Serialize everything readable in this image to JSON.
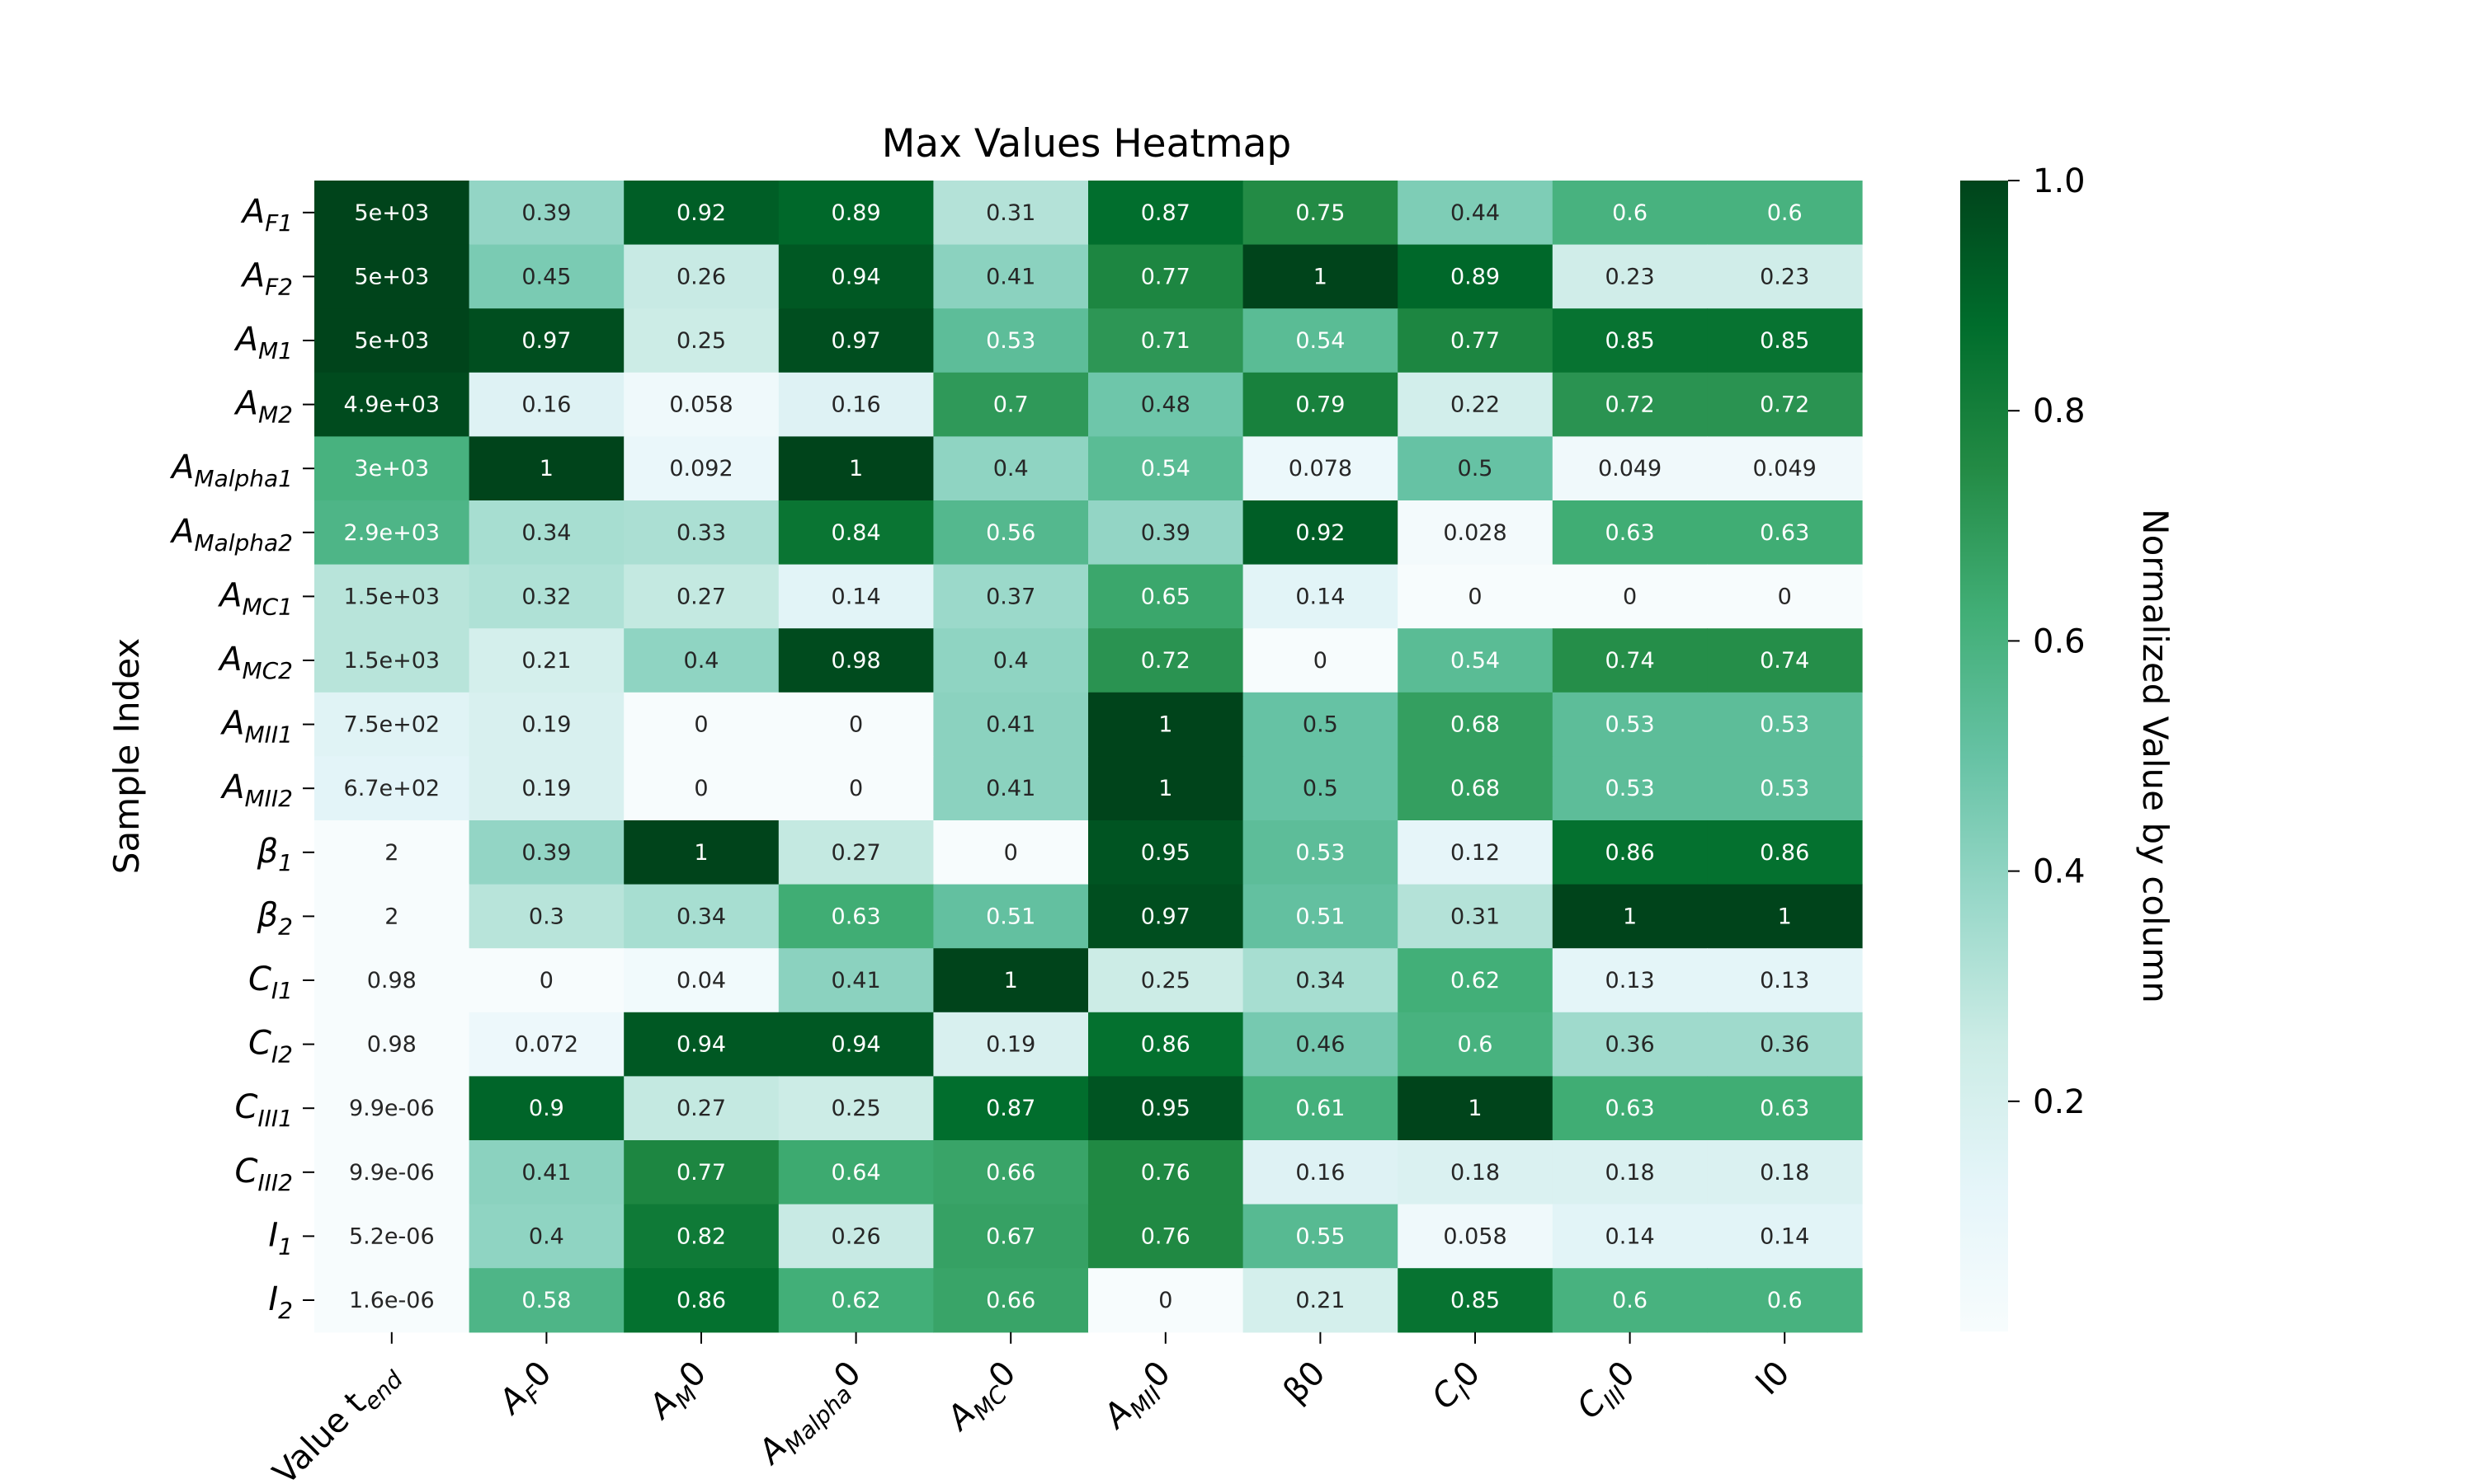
{
  "chart_data": {
    "type": "heatmap",
    "title": "Max Values Heatmap",
    "ylabel": "Sample Index",
    "colorbar": {
      "label": "Normalized Value by column",
      "ticks": [
        "0.2",
        "0.4",
        "0.6",
        "0.8",
        "1.0"
      ],
      "range": [
        0,
        1
      ],
      "colormap": "BuGn"
    },
    "columns": [
      {
        "text": "Value t",
        "sub": "end"
      },
      {
        "text": "A",
        "sub": "F",
        "suffix": "0"
      },
      {
        "text": "A",
        "sub": "M",
        "suffix": "0"
      },
      {
        "text": "A",
        "sub": "Malpha",
        "suffix": "0"
      },
      {
        "text": "A",
        "sub": "MC",
        "suffix": "0"
      },
      {
        "text": "A",
        "sub": "MII",
        "suffix": "0"
      },
      {
        "text": "β0"
      },
      {
        "text": "C",
        "sub": "I",
        "suffix": "0"
      },
      {
        "text": "C",
        "sub": "III",
        "suffix": "0"
      },
      {
        "text": "I0"
      }
    ],
    "rows": [
      {
        "text": "A",
        "sub": "F1"
      },
      {
        "text": "A",
        "sub": "F2"
      },
      {
        "text": "A",
        "sub": "M1"
      },
      {
        "text": "A",
        "sub": "M2"
      },
      {
        "text": "A",
        "sub": "Malpha1"
      },
      {
        "text": "A",
        "sub": "Malpha2"
      },
      {
        "text": "A",
        "sub": "MC1"
      },
      {
        "text": "A",
        "sub": "MC2"
      },
      {
        "text": "A",
        "sub": "MII1"
      },
      {
        "text": "A",
        "sub": "MII2"
      },
      {
        "text": "β",
        "sub": "1"
      },
      {
        "text": "β",
        "sub": "2"
      },
      {
        "text": "C",
        "sub": "I1"
      },
      {
        "text": "C",
        "sub": "I2"
      },
      {
        "text": "C",
        "sub": "III1"
      },
      {
        "text": "C",
        "sub": "III2"
      },
      {
        "text": "I",
        "sub": "1"
      },
      {
        "text": "I",
        "sub": "2"
      }
    ],
    "annotations": [
      [
        "5e+03",
        "0.39",
        "0.92",
        "0.89",
        "0.31",
        "0.87",
        "0.75",
        "0.44",
        "0.6",
        "0.6"
      ],
      [
        "5e+03",
        "0.45",
        "0.26",
        "0.94",
        "0.41",
        "0.77",
        "1",
        "0.89",
        "0.23",
        "0.23"
      ],
      [
        "5e+03",
        "0.97",
        "0.25",
        "0.97",
        "0.53",
        "0.71",
        "0.54",
        "0.77",
        "0.85",
        "0.85"
      ],
      [
        "4.9e+03",
        "0.16",
        "0.058",
        "0.16",
        "0.7",
        "0.48",
        "0.79",
        "0.22",
        "0.72",
        "0.72"
      ],
      [
        "3e+03",
        "1",
        "0.092",
        "1",
        "0.4",
        "0.54",
        "0.078",
        "0.5",
        "0.049",
        "0.049"
      ],
      [
        "2.9e+03",
        "0.34",
        "0.33",
        "0.84",
        "0.56",
        "0.39",
        "0.92",
        "0.028",
        "0.63",
        "0.63"
      ],
      [
        "1.5e+03",
        "0.32",
        "0.27",
        "0.14",
        "0.37",
        "0.65",
        "0.14",
        "0",
        "0",
        "0"
      ],
      [
        "1.5e+03",
        "0.21",
        "0.4",
        "0.98",
        "0.4",
        "0.72",
        "0",
        "0.54",
        "0.74",
        "0.74"
      ],
      [
        "7.5e+02",
        "0.19",
        "0",
        "0",
        "0.41",
        "1",
        "0.5",
        "0.68",
        "0.53",
        "0.53"
      ],
      [
        "6.7e+02",
        "0.19",
        "0",
        "0",
        "0.41",
        "1",
        "0.5",
        "0.68",
        "0.53",
        "0.53"
      ],
      [
        "2",
        "0.39",
        "1",
        "0.27",
        "0",
        "0.95",
        "0.53",
        "0.12",
        "0.86",
        "0.86"
      ],
      [
        "2",
        "0.3",
        "0.34",
        "0.63",
        "0.51",
        "0.97",
        "0.51",
        "0.31",
        "1",
        "1"
      ],
      [
        "0.98",
        "0",
        "0.04",
        "0.41",
        "1",
        "0.25",
        "0.34",
        "0.62",
        "0.13",
        "0.13"
      ],
      [
        "0.98",
        "0.072",
        "0.94",
        "0.94",
        "0.19",
        "0.86",
        "0.46",
        "0.6",
        "0.36",
        "0.36"
      ],
      [
        "9.9e-06",
        "0.9",
        "0.27",
        "0.25",
        "0.87",
        "0.95",
        "0.61",
        "1",
        "0.63",
        "0.63"
      ],
      [
        "9.9e-06",
        "0.41",
        "0.77",
        "0.64",
        "0.66",
        "0.76",
        "0.16",
        "0.18",
        "0.18",
        "0.18"
      ],
      [
        "5.2e-06",
        "0.4",
        "0.82",
        "0.26",
        "0.67",
        "0.76",
        "0.55",
        "0.058",
        "0.14",
        "0.14"
      ],
      [
        "1.6e-06",
        "0.58",
        "0.86",
        "0.62",
        "0.66",
        "0",
        "0.21",
        "0.85",
        "0.6",
        "0.6"
      ]
    ],
    "first_column_normalized": [
      1,
      1,
      1,
      0.98,
      0.6,
      0.58,
      0.3,
      0.3,
      0.15,
      0.134,
      0,
      0,
      0,
      0,
      0,
      0,
      0,
      0
    ]
  }
}
